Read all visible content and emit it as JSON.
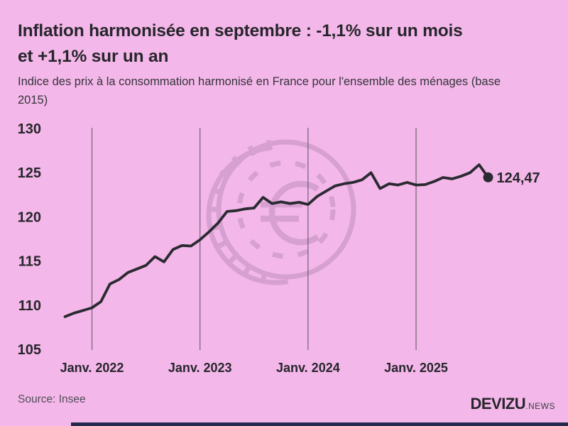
{
  "header": {
    "title_line1": "Inflation harmonisée en septembre : -1,1% sur un mois",
    "title_line2": "et +1,1% sur un an",
    "subtitle_line1": "Indice des prix à la consommation harmonisé en France pour l'ensemble des ménages (base",
    "subtitle_line2": "2015)"
  },
  "footer": {
    "source": "Source: Insee",
    "logo_main": "DEVIZU",
    "logo_suffix": ".NEWS"
  },
  "colors": {
    "background": "#f4b7e9",
    "line": "#2a2a31",
    "watermark": "#d6a0d0",
    "footer_bar": "#232a4e",
    "text": "#26262c",
    "muted_text": "#4f4f57",
    "gridline": "#55555c"
  },
  "chart_data": {
    "type": "line",
    "title": "Indice des prix à la consommation harmonisé en France (base 2015)",
    "x": [
      "2021-10",
      "2021-11",
      "2021-12",
      "2022-01",
      "2022-02",
      "2022-03",
      "2022-04",
      "2022-05",
      "2022-06",
      "2022-07",
      "2022-08",
      "2022-09",
      "2022-10",
      "2022-11",
      "2022-12",
      "2023-01",
      "2023-02",
      "2023-03",
      "2023-04",
      "2023-05",
      "2023-06",
      "2023-07",
      "2023-08",
      "2023-09",
      "2023-10",
      "2023-11",
      "2023-12",
      "2024-01",
      "2024-02",
      "2024-03",
      "2024-04",
      "2024-05",
      "2024-06",
      "2024-07",
      "2024-08",
      "2024-09",
      "2024-10",
      "2024-11",
      "2024-12",
      "2025-01",
      "2025-02",
      "2025-03",
      "2025-04",
      "2025-05",
      "2025-06",
      "2025-07",
      "2025-08",
      "2025-09"
    ],
    "values": [
      108.7,
      109.1,
      109.4,
      109.7,
      110.4,
      112.4,
      112.9,
      113.7,
      114.1,
      114.5,
      115.5,
      114.9,
      116.3,
      116.75,
      116.7,
      117.4,
      118.3,
      119.3,
      120.6,
      120.7,
      120.9,
      121.0,
      122.2,
      121.5,
      121.7,
      121.5,
      121.65,
      121.4,
      122.3,
      122.9,
      123.5,
      123.75,
      123.9,
      124.2,
      125.0,
      123.2,
      123.75,
      123.6,
      123.9,
      123.6,
      123.65,
      124.0,
      124.45,
      124.3,
      124.6,
      125.0,
      125.9,
      124.47
    ],
    "last_point_label": "124,47",
    "last_point_value": 124.47,
    "y_ticks": [
      130,
      125,
      120,
      115,
      110,
      105
    ],
    "ylim": [
      105,
      130
    ],
    "x_tick_labels": [
      "Janv. 2022",
      "Janv. 2023",
      "Janv. 2024",
      "Janv. 2025"
    ],
    "x_tick_month_indices": [
      3,
      15,
      27,
      39
    ],
    "grid": "vertical-only",
    "legend": "none",
    "line_color": "#2a2a31",
    "xlabel": "",
    "ylabel": ""
  }
}
